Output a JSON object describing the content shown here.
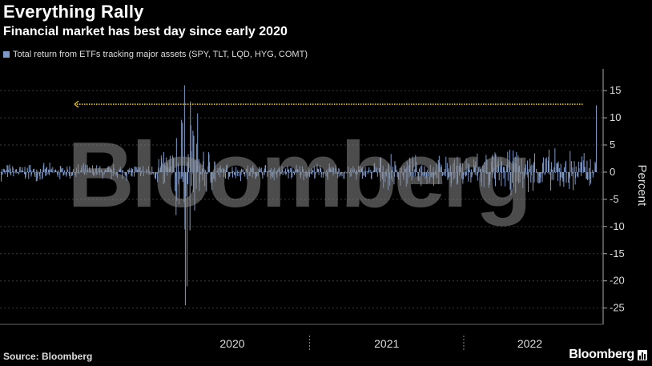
{
  "header": {
    "title": "Everything Rally",
    "subtitle": "Financial market has best day since early 2020"
  },
  "footer": {
    "source": "Source: Bloomberg",
    "brand": "Bloomberg"
  },
  "watermark": "Bloomberg",
  "chart_data": {
    "type": "bar",
    "title": "Everything Rally",
    "subtitle": "Financial market has best day since early 2020",
    "series": [
      {
        "name": "Total return from ETFs tracking major assets (SPY, TLT, LQD, HYG, COMT)",
        "color": "#7f9ac8"
      }
    ],
    "ylabel": "Percent",
    "ylim": [
      -28,
      19
    ],
    "yticks": [
      15,
      10,
      5,
      0,
      -5,
      -10,
      -15,
      -20,
      -25
    ],
    "x_categories": [
      "2020",
      "2021",
      "2022"
    ],
    "x_range": [
      "2019-01-01",
      "2022-11-10"
    ],
    "year_boundaries": [
      "2020-01-01",
      "2021-01-01",
      "2022-01-01"
    ],
    "highlights": [
      {
        "date": "2020-03-10",
        "value": 16
      },
      {
        "date": "2020-03-12",
        "value": -24.5
      },
      {
        "date": "2020-03-16",
        "value": -21
      },
      {
        "date": "2020-03-24",
        "value": 13
      },
      {
        "date": "2022-11-10",
        "value": 12.3
      }
    ],
    "reference_line": {
      "value": 12.5,
      "color": "#f5d000",
      "style": "dotted",
      "arrow": "left"
    },
    "grid": true
  }
}
